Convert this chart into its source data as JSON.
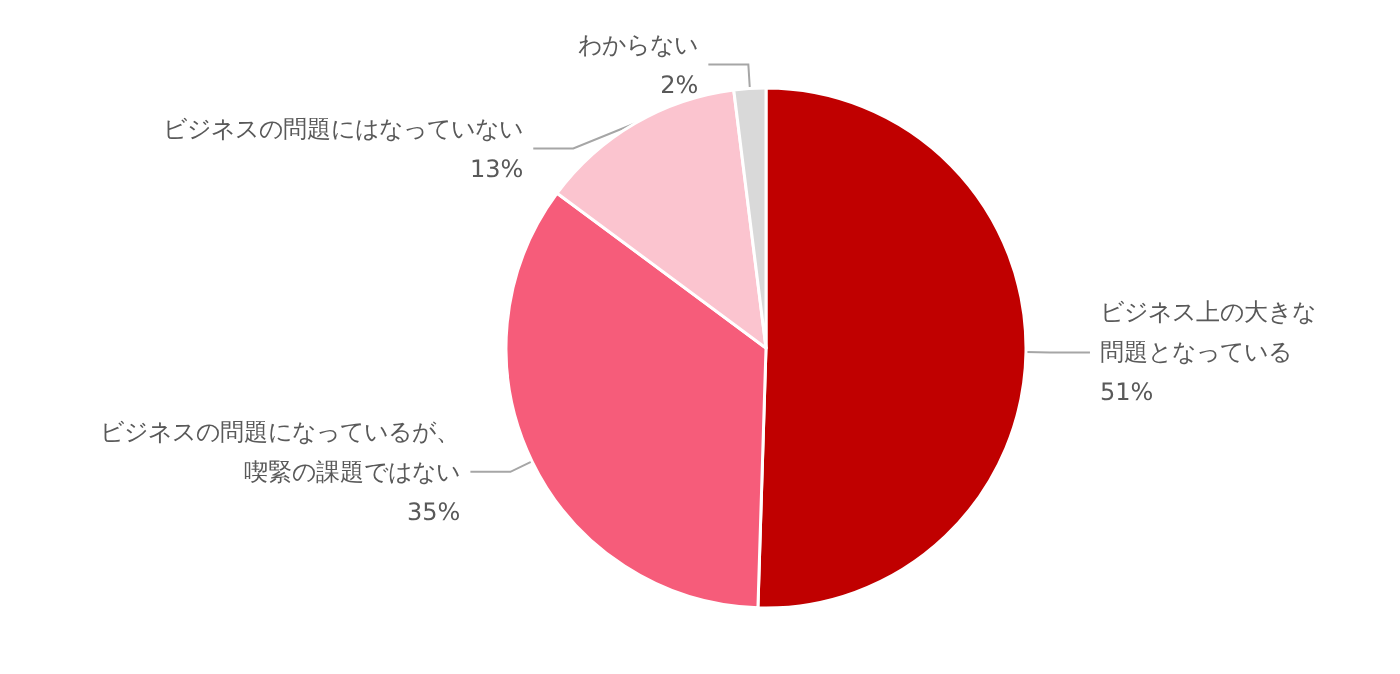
{
  "chart_data": {
    "type": "pie",
    "categories": [
      "ビジネス上の大きな問題となっている",
      "ビジネスの問題になっているが、喫緊の課題ではない",
      "ビジネスの問題にはなっていない",
      "わからない"
    ],
    "values": [
      51,
      35,
      13,
      2
    ],
    "value_labels": [
      "51%",
      "35%",
      "13%",
      "2%"
    ],
    "colors": [
      "#c00000",
      "#f65c7a",
      "#fbc4cf",
      "#d9d9d9"
    ]
  }
}
